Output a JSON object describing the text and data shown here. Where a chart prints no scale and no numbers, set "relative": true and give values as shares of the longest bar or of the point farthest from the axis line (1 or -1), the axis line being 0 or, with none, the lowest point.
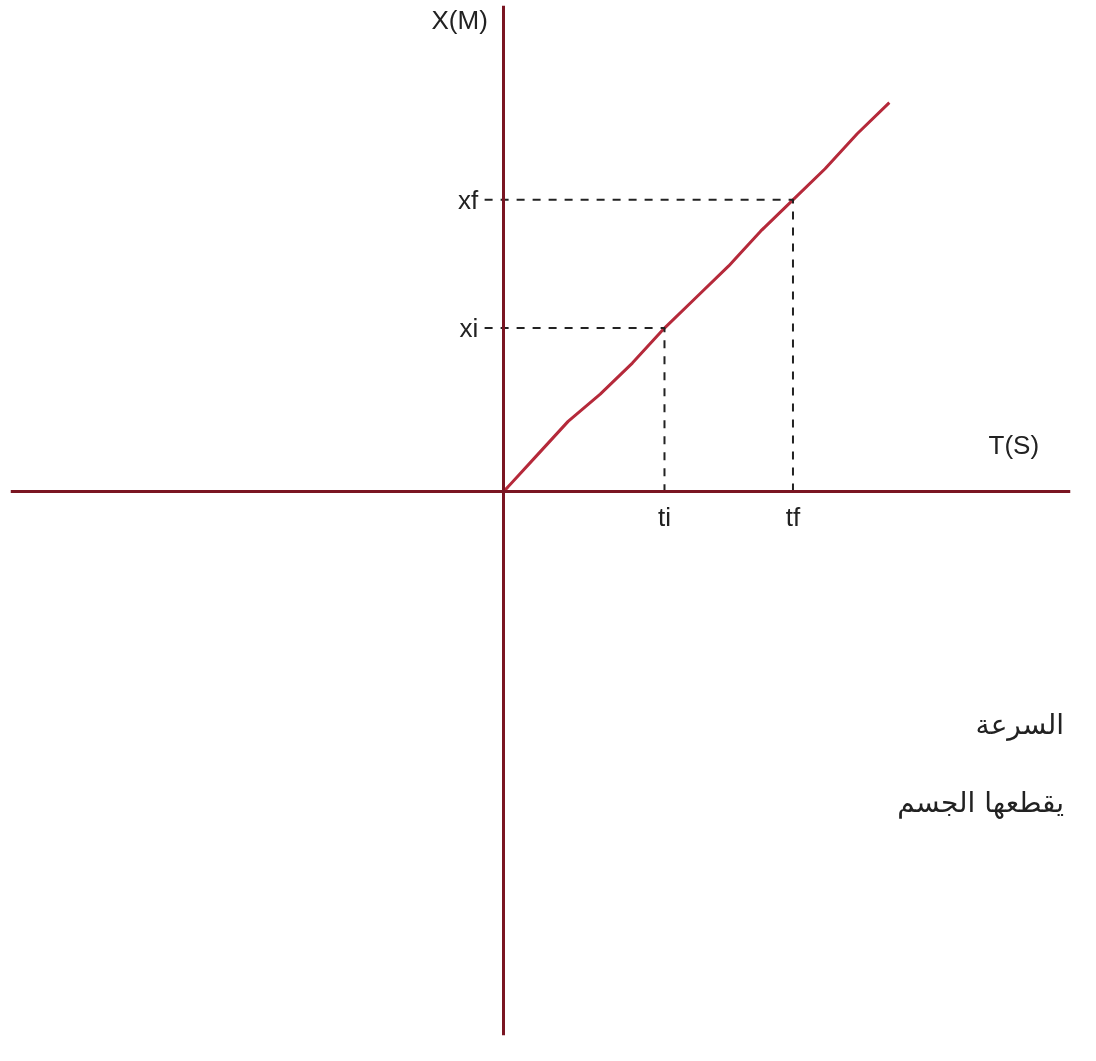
{
  "chart_data": {
    "type": "line",
    "relative": true,
    "xlabel": "T(S)",
    "ylabel": "X(M)",
    "categories": [
      null,
      null,
      null,
      null,
      null,
      "ti",
      null,
      null,
      null,
      "tf",
      null,
      null,
      null
    ],
    "series": [
      {
        "color": "#b5293a",
        "values": [
          0,
          0.09,
          0.18,
          0.25,
          0.33,
          0.42,
          0.5,
          0.58,
          0.67,
          0.75,
          0.83,
          0.92,
          1.0
        ]
      }
    ],
    "annotations": [
      "xi",
      "xf",
      "السرعة",
      "يقطعها الجسم"
    ],
    "grid": false,
    "marker": "none",
    "line_style": "solid"
  }
}
